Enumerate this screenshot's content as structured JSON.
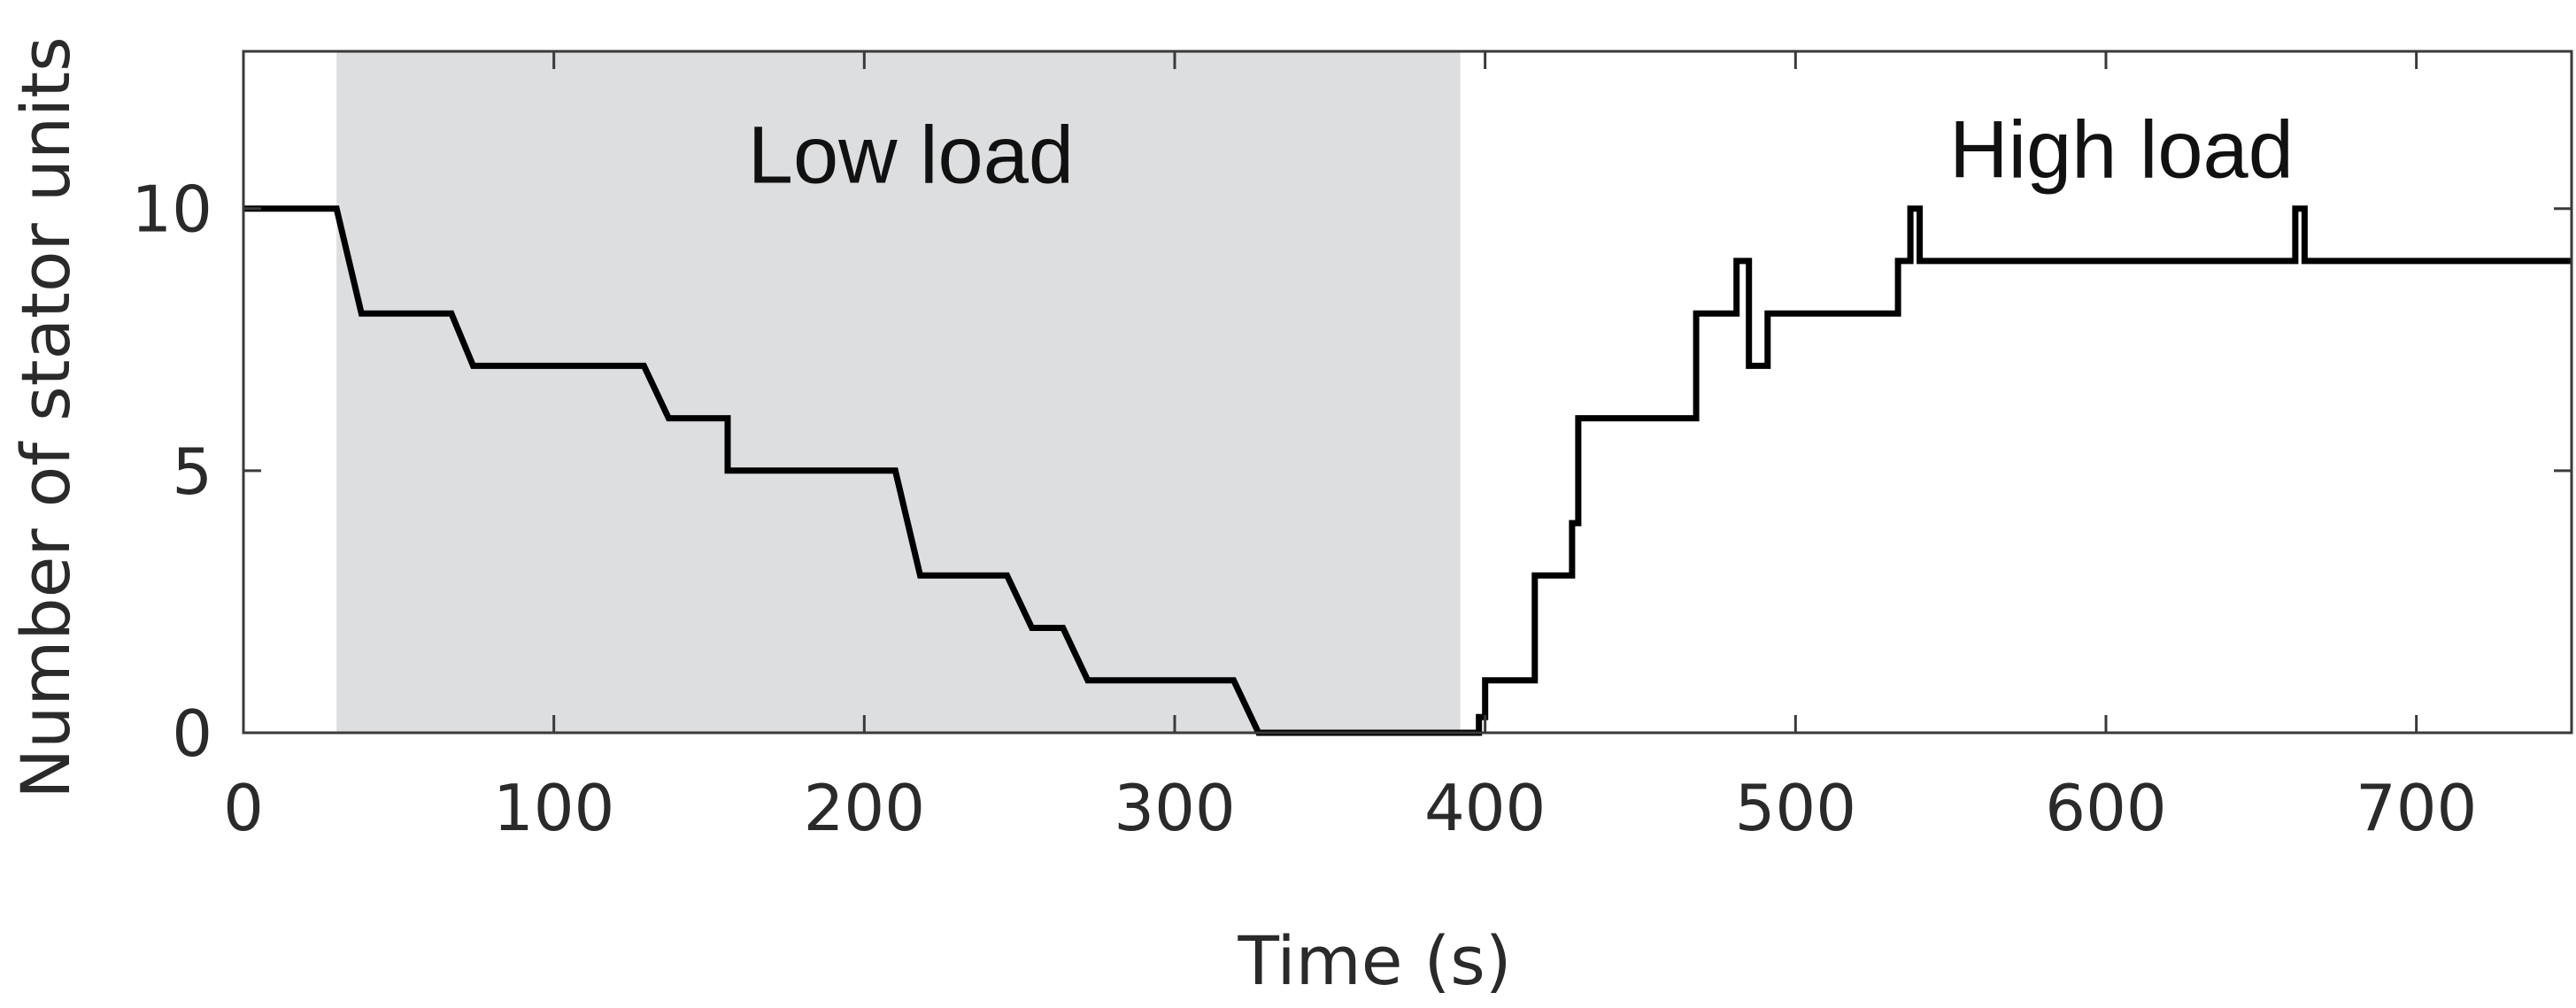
{
  "chart_data": {
    "type": "line",
    "title": "",
    "xlabel": "Time (s)",
    "ylabel": "Number of stator units",
    "xlim": [
      0,
      750
    ],
    "ylim": [
      0,
      13
    ],
    "xticks": [
      0,
      100,
      200,
      300,
      400,
      500,
      600,
      700
    ],
    "yticks": [
      0,
      5,
      10
    ],
    "grid": false,
    "legend": "none",
    "shaded_region": {
      "label": "Low load",
      "x_range": [
        30,
        392
      ],
      "color": "#dddee0"
    },
    "annotations": [
      {
        "text": "Low load",
        "x": 215,
        "y": 11
      },
      {
        "text": "High load",
        "x": 605,
        "y": 11.1
      }
    ],
    "series": [
      {
        "color": "#000000",
        "x": [
          0,
          30,
          38,
          67,
          74,
          129,
          137,
          156,
          156,
          210,
          218,
          246,
          254,
          264,
          272,
          319,
          327,
          398,
          398,
          400,
          400,
          416,
          416,
          428,
          428,
          430,
          430,
          432,
          432,
          468,
          468,
          481,
          481,
          485,
          485,
          491,
          491,
          533,
          533,
          537,
          537,
          540,
          540,
          661,
          661,
          664,
          664,
          750
        ],
        "y": [
          10,
          10,
          8,
          8,
          7,
          7,
          6,
          6,
          5,
          5,
          3,
          3,
          2,
          2,
          1,
          1,
          0,
          0,
          0.3,
          0.3,
          1,
          1,
          3,
          3,
          4,
          4,
          6,
          6,
          6,
          6,
          8,
          8,
          9,
          9,
          7,
          7,
          8,
          8,
          9,
          9,
          10,
          10,
          9,
          9,
          10,
          10,
          9,
          9
        ]
      }
    ]
  }
}
